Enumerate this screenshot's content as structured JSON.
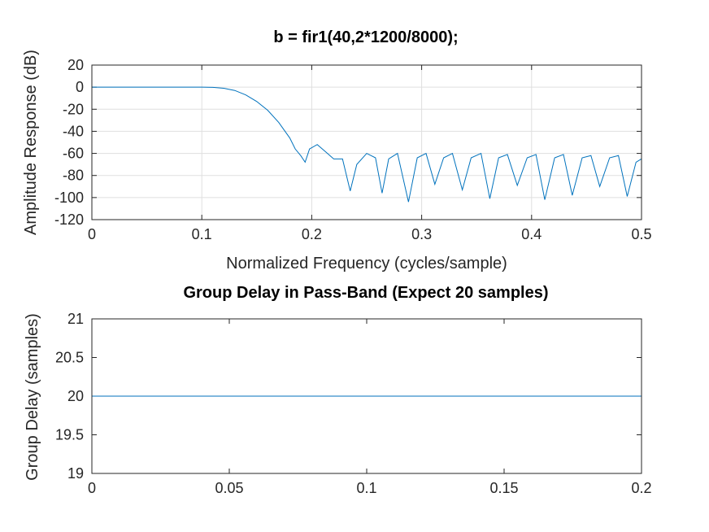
{
  "chart_data": [
    {
      "type": "line",
      "title": "b = fir1(40,2*1200/8000);",
      "xlabel": "Normalized Frequency (cycles/sample)",
      "ylabel": "Amplitude Response (dB)",
      "xlim": [
        0,
        0.5
      ],
      "ylim": [
        -120,
        20
      ],
      "xticks": [
        0,
        0.1,
        0.2,
        0.3,
        0.4,
        0.5
      ],
      "xtick_labels": [
        "0",
        "0.1",
        "0.2",
        "0.3",
        "0.4",
        "0.5"
      ],
      "yticks": [
        20,
        0,
        -20,
        -40,
        -60,
        -80,
        -100,
        -120
      ],
      "ytick_labels": [
        "20",
        "0",
        "-20",
        "-40",
        "-60",
        "-80",
        "-100",
        "-120"
      ],
      "grid": true,
      "color": "#0072bd",
      "series": [
        {
          "x": [
            0,
            0.05,
            0.1,
            0.11,
            0.12,
            0.13,
            0.14,
            0.15,
            0.16,
            0.17,
            0.18,
            0.185,
            0.19,
            0.194,
            0.198,
            0.205,
            0.212,
            0.22,
            0.228,
            0.235,
            0.241,
            0.25,
            0.258,
            0.264,
            0.27,
            0.278,
            0.288,
            0.296,
            0.304,
            0.312,
            0.32,
            0.328,
            0.337,
            0.345,
            0.354,
            0.362,
            0.37,
            0.378,
            0.387,
            0.396,
            0.404,
            0.412,
            0.421,
            0.429,
            0.437,
            0.446,
            0.454,
            0.462,
            0.471,
            0.479,
            0.487,
            0.495,
            0.5
          ],
          "y": [
            0,
            0,
            0,
            -0.2,
            -1,
            -3,
            -7,
            -13,
            -21,
            -32,
            -46,
            -56,
            -62,
            -68,
            -56,
            -52,
            -58,
            -65,
            -65,
            -94,
            -70,
            -60,
            -64,
            -96,
            -65,
            -60,
            -104,
            -64,
            -60,
            -88,
            -64,
            -60,
            -93,
            -64,
            -60,
            -101,
            -64,
            -61,
            -89,
            -64,
            -61,
            -102,
            -64,
            -61,
            -98,
            -64,
            -62,
            -90,
            -64,
            -62,
            -99,
            -68,
            -65
          ]
        }
      ]
    },
    {
      "type": "line",
      "title": "Group Delay in Pass-Band (Expect 20 samples)",
      "xlabel": "",
      "ylabel": "Group Delay (samples)",
      "xlim": [
        0,
        0.2
      ],
      "ylim": [
        19,
        21
      ],
      "xticks": [
        0,
        0.05,
        0.1,
        0.15,
        0.2
      ],
      "xtick_labels": [
        "0",
        "0.05",
        "0.1",
        "0.15",
        "0.2"
      ],
      "yticks": [
        21,
        20.5,
        20,
        19.5,
        19
      ],
      "ytick_labels": [
        "21",
        "20.5",
        "20",
        "19.5",
        "19"
      ],
      "grid": false,
      "color": "#0072bd",
      "series": [
        {
          "x": [
            0,
            0.2
          ],
          "y": [
            20,
            20
          ]
        }
      ]
    }
  ]
}
